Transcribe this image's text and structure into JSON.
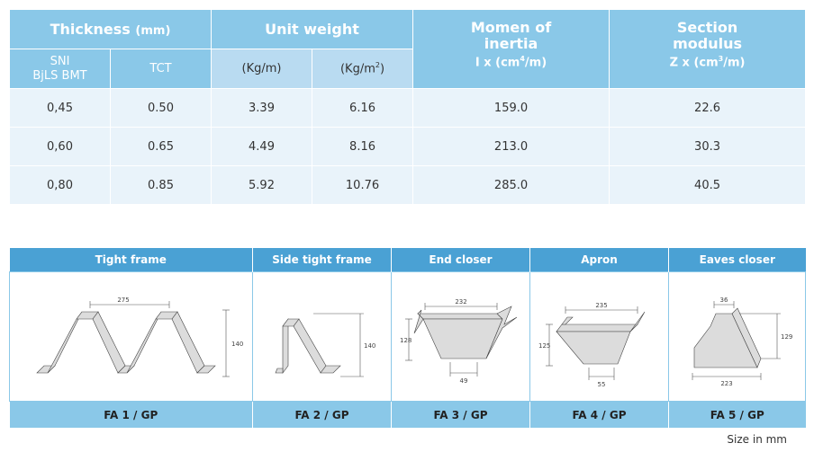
{
  "spec_table": {
    "thickness_title": "Thickness",
    "thickness_unit": "(mm)",
    "unit_weight_title": "Unit weight",
    "inertia_title_1": "Momen of",
    "inertia_title_2": "inertia",
    "inertia_unit_prefix": "I x (cm",
    "inertia_unit_exp": "4",
    "inertia_unit_suffix": "/m)",
    "modulus_title_1": "Section",
    "modulus_title_2": "modulus",
    "modulus_unit_prefix": "Z x (cm",
    "modulus_unit_exp": "3",
    "modulus_unit_suffix": "/m)",
    "sub_sni_1": "SNI",
    "sub_sni_2": "BjLS BMT",
    "sub_tct": "TCT",
    "sub_kgm": "(Kg/m)",
    "sub_kgm2_prefix": "(Kg/m",
    "sub_kgm2_exp": "2",
    "sub_kgm2_suffix": ")",
    "rows": [
      {
        "sni": "0,45",
        "tct": "0.50",
        "kgm": "3.39",
        "kgm2": "6.16",
        "ix": "159.0",
        "zx": "22.6"
      },
      {
        "sni": "0,60",
        "tct": "0.65",
        "kgm": "4.49",
        "kgm2": "8.16",
        "ix": "213.0",
        "zx": "30.3"
      },
      {
        "sni": "0,80",
        "tct": "0.85",
        "kgm": "5.92",
        "kgm2": "10.76",
        "ix": "285.0",
        "zx": "40.5"
      }
    ]
  },
  "profiles": [
    {
      "name": "Tight frame",
      "code": "FA 1 / GP",
      "dims": [
        "275",
        "140"
      ]
    },
    {
      "name": "Side tight frame",
      "code": "FA 2 / GP",
      "dims": [
        "140"
      ]
    },
    {
      "name": "End closer",
      "code": "FA 3 / GP",
      "dims": [
        "232",
        "128",
        "49"
      ]
    },
    {
      "name": "Apron",
      "code": "FA 4 / GP",
      "dims": [
        "235",
        "125",
        "55"
      ]
    },
    {
      "name": "Eaves closer",
      "code": "FA 5 / GP",
      "dims": [
        "36",
        "129",
        "223"
      ]
    }
  ],
  "size_note": "Size in mm",
  "colors": {
    "header": "#8ac8e8",
    "header_light": "#b9dbf1",
    "row": "#e9f3fa",
    "panel_header": "#4aa1d4"
  }
}
